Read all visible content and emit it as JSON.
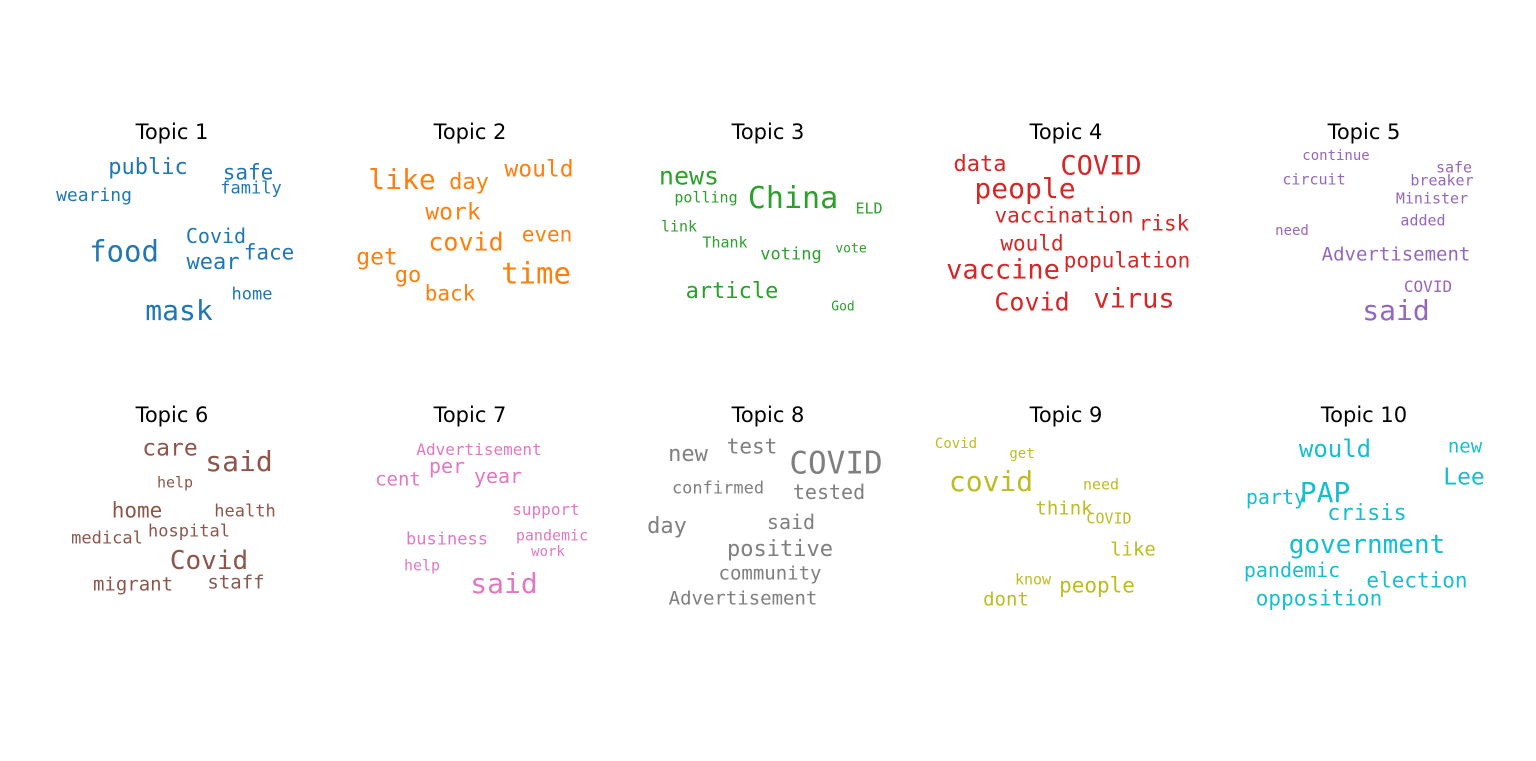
{
  "topics": [
    {
      "title": "Topic 1",
      "color": "#1f77b4",
      "words": [
        "public",
        "safe",
        "wearing",
        "family",
        "food",
        "Covid",
        "face",
        "wear",
        "home",
        "mask"
      ]
    },
    {
      "title": "Topic 2",
      "color": "#ff7f0e",
      "words": [
        "like",
        "day",
        "would",
        "work",
        "covid",
        "even",
        "get",
        "time",
        "go",
        "back"
      ]
    },
    {
      "title": "Topic 3",
      "color": "#2ca02c",
      "words": [
        "news",
        "polling",
        "China",
        "ELD",
        "link",
        "Thank",
        "voting",
        "vote",
        "article",
        "God"
      ]
    },
    {
      "title": "Topic 4",
      "color": "#d62728",
      "words": [
        "data",
        "COVID",
        "people",
        "vaccination",
        "risk",
        "would",
        "vaccine",
        "population",
        "Covid",
        "virus"
      ]
    },
    {
      "title": "Topic 5",
      "color": "#9467bd",
      "words": [
        "continue",
        "safe",
        "circuit",
        "breaker",
        "Minister",
        "added",
        "need",
        "Advertisement",
        "COVID",
        "said"
      ]
    },
    {
      "title": "Topic 6",
      "color": "#8c564b",
      "words": [
        "care",
        "said",
        "help",
        "home",
        "health",
        "hospital",
        "medical",
        "Covid",
        "migrant",
        "staff"
      ]
    },
    {
      "title": "Topic 7",
      "color": "#e377c2",
      "words": [
        "Advertisement",
        "per",
        "cent",
        "year",
        "support",
        "business",
        "pandemic",
        "work",
        "help",
        "said"
      ]
    },
    {
      "title": "Topic 8",
      "color": "#7f7f7f",
      "words": [
        "new",
        "test",
        "COVID",
        "confirmed",
        "tested",
        "day",
        "said",
        "positive",
        "community",
        "Advertisement"
      ]
    },
    {
      "title": "Topic 9",
      "color": "#bcbd22",
      "words": [
        "Covid",
        "get",
        "covid",
        "need",
        "think",
        "COVID",
        "like",
        "know",
        "people",
        "dont"
      ]
    },
    {
      "title": "Topic 10",
      "color": "#17becf",
      "words": [
        "would",
        "new",
        "Lee",
        "party",
        "PAP",
        "crisis",
        "government",
        "pandemic",
        "election",
        "opposition"
      ]
    }
  ]
}
